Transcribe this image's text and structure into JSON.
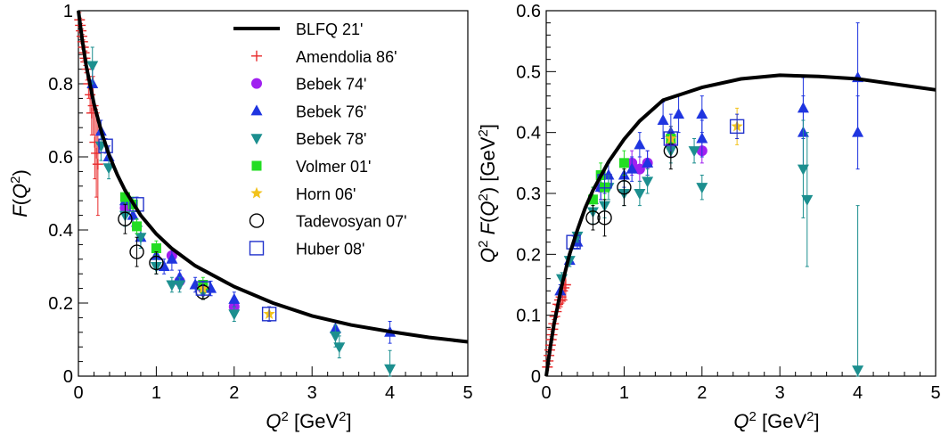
{
  "colors": {
    "curve": "#000000",
    "Amendolia 86'": "#e8292a",
    "Bebek 74'": "#a020f0",
    "Bebek 76'": "#1f35e0",
    "Bebek 78'": "#1c8f8f",
    "Volmer 01'": "#22dd22",
    "Horn 06'": "#f2c21b",
    "Tadevosyan 07'": "#000000",
    "Huber 08'": "#2233cc"
  },
  "chart_data": [
    {
      "type": "scatter",
      "panel": "left",
      "title": "",
      "xlabel": "Q² [GeV²]",
      "ylabel": "F(Q²)",
      "xlim": [
        0,
        5
      ],
      "ylim": [
        0,
        1
      ],
      "x_ticks": [
        "0",
        "1",
        "2",
        "3",
        "4",
        "5"
      ],
      "y_ticks": [
        "0",
        "0.2",
        "0.4",
        "0.6",
        "0.8",
        "1"
      ],
      "legend_position": "top-right",
      "legend": [
        "BLFQ 21'",
        "Amendolia 86'",
        "Bebek 74'",
        "Bebek 76'",
        "Bebek 78'",
        "Volmer 01'",
        "Horn 06'",
        "Tadevosyan 07'",
        "Huber 08'"
      ],
      "curve": {
        "name": "BLFQ 21'",
        "x": [
          0,
          0.05,
          0.1,
          0.2,
          0.3,
          0.4,
          0.5,
          0.6,
          0.8,
          1.0,
          1.2,
          1.5,
          2.0,
          2.5,
          3.0,
          3.5,
          4.0,
          4.5,
          5.0
        ],
        "y": [
          1.0,
          0.918,
          0.85,
          0.745,
          0.665,
          0.601,
          0.551,
          0.508,
          0.44,
          0.389,
          0.349,
          0.302,
          0.245,
          0.2,
          0.165,
          0.14,
          0.122,
          0.106,
          0.094
        ]
      },
      "series": [
        {
          "name": "Amendolia 86'",
          "marker": "plus",
          "points": [
            [
              0.015,
              0.975,
              0.02
            ],
            [
              0.025,
              0.96,
              0.02
            ],
            [
              0.035,
              0.945,
              0.02
            ],
            [
              0.045,
              0.93,
              0.02
            ],
            [
              0.055,
              0.915,
              0.02
            ],
            [
              0.065,
              0.9,
              0.02
            ],
            [
              0.075,
              0.885,
              0.02
            ],
            [
              0.085,
              0.87,
              0.02
            ],
            [
              0.095,
              0.86,
              0.03
            ],
            [
              0.11,
              0.84,
              0.03
            ],
            [
              0.13,
              0.8,
              0.04
            ],
            [
              0.15,
              0.77,
              0.05
            ],
            [
              0.17,
              0.72,
              0.06
            ],
            [
              0.19,
              0.74,
              0.08
            ],
            [
              0.21,
              0.64,
              0.1
            ],
            [
              0.23,
              0.61,
              0.12
            ],
            [
              0.25,
              0.58,
              0.14
            ]
          ]
        },
        {
          "name": "Bebek 74'",
          "marker": "circle",
          "points": [
            [
              0.6,
              0.46,
              0.02
            ],
            [
              1.2,
              0.33,
              0.02
            ],
            [
              1.3,
              0.26,
              0.02
            ],
            [
              1.6,
              0.24,
              0.02
            ],
            [
              2.0,
              0.19,
              0.02
            ]
          ]
        },
        {
          "name": "Bebek 76'",
          "marker": "triangle-up",
          "points": [
            [
              0.18,
              0.8,
              0.04
            ],
            [
              0.29,
              0.67,
              0.03
            ],
            [
              0.39,
              0.6,
              0.03
            ],
            [
              0.6,
              0.48,
              0.03
            ],
            [
              0.7,
              0.44,
              0.03
            ],
            [
              0.8,
              0.38,
              0.03
            ],
            [
              1.0,
              0.33,
              0.02
            ],
            [
              1.1,
              0.3,
              0.02
            ],
            [
              1.2,
              0.32,
              0.03
            ],
            [
              1.3,
              0.27,
              0.02
            ],
            [
              1.5,
              0.25,
              0.02
            ],
            [
              1.7,
              0.24,
              0.02
            ],
            [
              2.0,
              0.21,
              0.02
            ],
            [
              3.3,
              0.13,
              0.02
            ],
            [
              4.0,
              0.12,
              0.03
            ]
          ]
        },
        {
          "name": "Bebek 78'",
          "marker": "triangle-down",
          "points": [
            [
              0.18,
              0.85,
              0.05
            ],
            [
              0.29,
              0.63,
              0.04
            ],
            [
              0.39,
              0.57,
              0.03
            ],
            [
              0.6,
              0.44,
              0.03
            ],
            [
              0.8,
              0.38,
              0.03
            ],
            [
              1.0,
              0.3,
              0.02
            ],
            [
              1.2,
              0.25,
              0.02
            ],
            [
              1.3,
              0.25,
              0.02
            ],
            [
              1.6,
              0.23,
              0.02
            ],
            [
              2.0,
              0.17,
              0.02
            ],
            [
              3.3,
              0.11,
              0.03
            ],
            [
              3.35,
              0.08,
              0.03
            ],
            [
              4.0,
              0.02,
              0.05
            ]
          ]
        },
        {
          "name": "Volmer 01'",
          "marker": "square",
          "points": [
            [
              0.6,
              0.49,
              0.02
            ],
            [
              0.7,
              0.47,
              0.02
            ],
            [
              0.75,
              0.41,
              0.02
            ],
            [
              1.0,
              0.35,
              0.02
            ],
            [
              1.6,
              0.25,
              0.02
            ]
          ]
        },
        {
          "name": "Horn 06'",
          "marker": "star",
          "points": [
            [
              1.6,
              0.24,
              0.02
            ],
            [
              2.45,
              0.17,
              0.02
            ]
          ]
        },
        {
          "name": "Tadevosyan 07'",
          "marker": "circle-open",
          "points": [
            [
              0.6,
              0.43,
              0.04
            ],
            [
              0.75,
              0.34,
              0.04
            ],
            [
              1.0,
              0.31,
              0.03
            ],
            [
              1.6,
              0.23,
              0.02
            ]
          ]
        },
        {
          "name": "Huber 08'",
          "marker": "square-open",
          "points": [
            [
              0.35,
              0.63,
              0.02
            ],
            [
              0.75,
              0.47,
              0.02
            ],
            [
              1.6,
              0.24,
              0.02
            ],
            [
              2.45,
              0.17,
              0.02
            ]
          ]
        }
      ]
    },
    {
      "type": "scatter",
      "panel": "right",
      "title": "",
      "xlabel": "Q² [GeV²]",
      "ylabel": "Q² F(Q²) [GeV²]",
      "xlim": [
        0,
        5
      ],
      "ylim": [
        0,
        0.6
      ],
      "x_ticks": [
        "0",
        "1",
        "2",
        "3",
        "4",
        "5"
      ],
      "y_ticks": [
        "0",
        "0.1",
        "0.2",
        "0.3",
        "0.4",
        "0.5",
        "0.6"
      ],
      "curve": {
        "name": "BLFQ 21'",
        "x": [
          0,
          0.05,
          0.1,
          0.2,
          0.3,
          0.4,
          0.5,
          0.6,
          0.8,
          1.0,
          1.2,
          1.5,
          2.0,
          2.5,
          3.0,
          3.5,
          4.0,
          4.5,
          5.0
        ],
        "y": [
          0,
          0.046,
          0.085,
          0.149,
          0.2,
          0.24,
          0.276,
          0.305,
          0.352,
          0.389,
          0.419,
          0.453,
          0.474,
          0.488,
          0.494,
          0.492,
          0.488,
          0.479,
          0.47
        ]
      },
      "series": [
        {
          "name": "Amendolia 86'",
          "marker": "plus",
          "points": [
            [
              0.015,
              0.015,
              0.005
            ],
            [
              0.025,
              0.025,
              0.005
            ],
            [
              0.035,
              0.034,
              0.005
            ],
            [
              0.045,
              0.043,
              0.005
            ],
            [
              0.055,
              0.051,
              0.005
            ],
            [
              0.065,
              0.06,
              0.005
            ],
            [
              0.075,
              0.068,
              0.006
            ],
            [
              0.085,
              0.077,
              0.006
            ],
            [
              0.095,
              0.086,
              0.007
            ],
            [
              0.11,
              0.098,
              0.008
            ],
            [
              0.13,
              0.106,
              0.01
            ],
            [
              0.15,
              0.118,
              0.012
            ],
            [
              0.17,
              0.125,
              0.014
            ],
            [
              0.19,
              0.13,
              0.016
            ],
            [
              0.21,
              0.14,
              0.02
            ],
            [
              0.23,
              0.145,
              0.022
            ],
            [
              0.25,
              0.15,
              0.025
            ]
          ]
        },
        {
          "name": "Bebek 74'",
          "marker": "circle",
          "points": [
            [
              0.7,
              0.31,
              0.02
            ],
            [
              1.1,
              0.35,
              0.02
            ],
            [
              1.2,
              0.34,
              0.02
            ],
            [
              1.3,
              0.35,
              0.02
            ],
            [
              1.6,
              0.38,
              0.02
            ],
            [
              2.0,
              0.37,
              0.02
            ]
          ]
        },
        {
          "name": "Bebek 76'",
          "marker": "triangle-up",
          "points": [
            [
              0.18,
              0.14,
              0.01
            ],
            [
              0.3,
              0.19,
              0.01
            ],
            [
              0.4,
              0.22,
              0.01
            ],
            [
              0.6,
              0.29,
              0.02
            ],
            [
              0.7,
              0.31,
              0.02
            ],
            [
              0.8,
              0.33,
              0.02
            ],
            [
              1.0,
              0.33,
              0.02
            ],
            [
              1.1,
              0.34,
              0.02
            ],
            [
              1.2,
              0.38,
              0.02
            ],
            [
              1.3,
              0.35,
              0.02
            ],
            [
              1.5,
              0.42,
              0.03
            ],
            [
              1.6,
              0.4,
              0.03
            ],
            [
              1.7,
              0.43,
              0.03
            ],
            [
              2.0,
              0.43,
              0.03
            ],
            [
              2.0,
              0.39,
              0.03
            ],
            [
              3.3,
              0.44,
              0.05
            ],
            [
              3.3,
              0.4,
              0.06
            ],
            [
              4.0,
              0.49,
              0.09
            ],
            [
              4.0,
              0.4,
              0.06
            ]
          ]
        },
        {
          "name": "Bebek 78'",
          "marker": "triangle-down",
          "points": [
            [
              0.2,
              0.16,
              0.01
            ],
            [
              0.3,
              0.19,
              0.01
            ],
            [
              0.4,
              0.23,
              0.01
            ],
            [
              0.6,
              0.27,
              0.02
            ],
            [
              0.75,
              0.28,
              0.02
            ],
            [
              0.8,
              0.31,
              0.02
            ],
            [
              1.0,
              0.3,
              0.02
            ],
            [
              1.2,
              0.3,
              0.02
            ],
            [
              1.3,
              0.32,
              0.02
            ],
            [
              1.6,
              0.37,
              0.02
            ],
            [
              1.9,
              0.37,
              0.02
            ],
            [
              2.0,
              0.31,
              0.02
            ],
            [
              3.3,
              0.34,
              0.08
            ],
            [
              3.35,
              0.29,
              0.11
            ],
            [
              4.0,
              0.01,
              0.27
            ]
          ]
        },
        {
          "name": "Volmer 01'",
          "marker": "square",
          "points": [
            [
              0.6,
              0.29,
              0.02
            ],
            [
              0.7,
              0.33,
              0.02
            ],
            [
              0.75,
              0.31,
              0.02
            ],
            [
              1.0,
              0.35,
              0.02
            ],
            [
              1.6,
              0.39,
              0.02
            ]
          ]
        },
        {
          "name": "Horn 06'",
          "marker": "star",
          "points": [
            [
              1.6,
              0.39,
              0.02
            ],
            [
              2.45,
              0.41,
              0.03
            ]
          ]
        },
        {
          "name": "Tadevosyan 07'",
          "marker": "circle-open",
          "points": [
            [
              0.6,
              0.26,
              0.02
            ],
            [
              0.75,
              0.26,
              0.03
            ],
            [
              1.0,
              0.31,
              0.03
            ],
            [
              1.6,
              0.37,
              0.03
            ]
          ]
        },
        {
          "name": "Huber 08'",
          "marker": "square-open",
          "points": [
            [
              0.35,
              0.22,
              0.01
            ],
            [
              0.75,
              0.32,
              0.02
            ],
            [
              1.6,
              0.39,
              0.02
            ],
            [
              2.45,
              0.41,
              0.02
            ]
          ]
        }
      ]
    }
  ]
}
